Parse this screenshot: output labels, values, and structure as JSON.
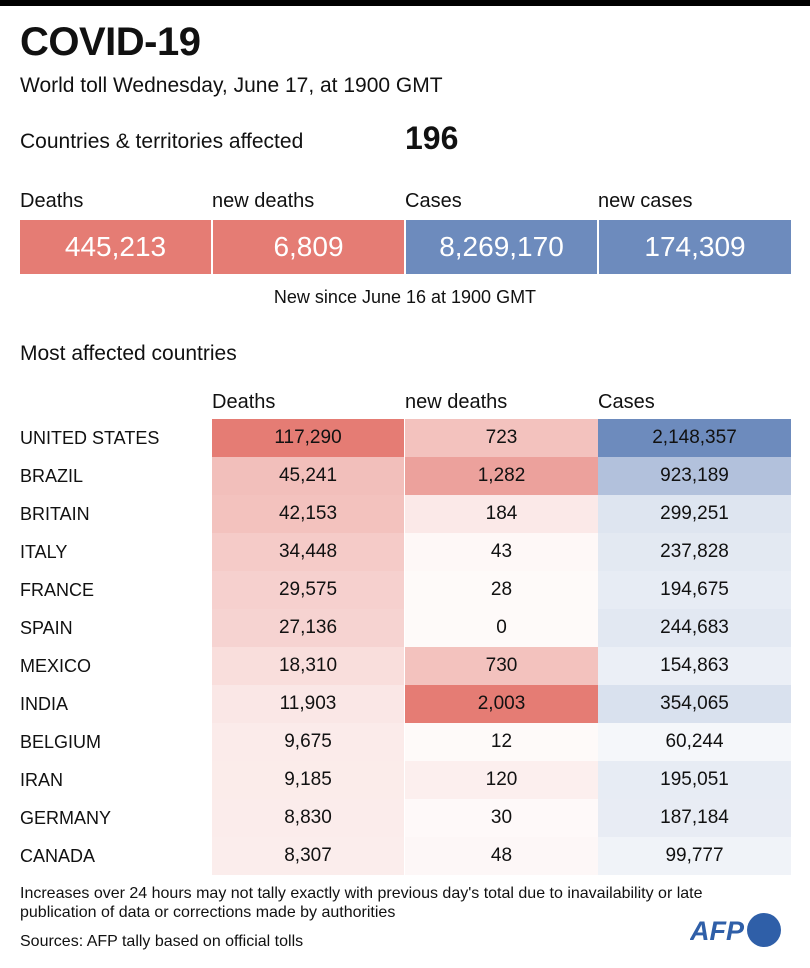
{
  "header": {
    "title": "COVID-19",
    "subtitle": "World toll Wednesday, June 17, at 1900 GMT",
    "countries_label": "Countries & territories affected",
    "countries_value": "196"
  },
  "summary": {
    "items": [
      {
        "label": "Deaths",
        "value": "445,213",
        "color": "#e57c74"
      },
      {
        "label": "new deaths",
        "value": "6,809",
        "color": "#e57c74"
      },
      {
        "label": "Cases",
        "value": "8,269,170",
        "color": "#6d8bbd"
      },
      {
        "label": "new cases",
        "value": "174,309",
        "color": "#6d8bbd"
      }
    ],
    "note": "New since  June 16 at 1900 GMT"
  },
  "table": {
    "title": "Most affected countries",
    "columns": [
      "Deaths",
      "new deaths",
      "Cases"
    ],
    "rows": [
      {
        "country": "UNITED STATES",
        "deaths": "117,290",
        "new_deaths": "723",
        "cases": "2,148,357"
      },
      {
        "country": "BRAZIL",
        "deaths": "45,241",
        "new_deaths": "1,282",
        "cases": "923,189"
      },
      {
        "country": "BRITAIN",
        "deaths": "42,153",
        "new_deaths": "184",
        "cases": "299,251"
      },
      {
        "country": "ITALY",
        "deaths": "34,448",
        "new_deaths": "43",
        "cases": "237,828"
      },
      {
        "country": "FRANCE",
        "deaths": "29,575",
        "new_deaths": "28",
        "cases": "194,675"
      },
      {
        "country": "SPAIN",
        "deaths": "27,136",
        "new_deaths": "0",
        "cases": "244,683"
      },
      {
        "country": "MEXICO",
        "deaths": "18,310",
        "new_deaths": "730",
        "cases": "154,863"
      },
      {
        "country": "INDIA",
        "deaths": "11,903",
        "new_deaths": "2,003",
        "cases": "354,065"
      },
      {
        "country": "BELGIUM",
        "deaths": "9,675",
        "new_deaths": "12",
        "cases": "60,244"
      },
      {
        "country": "IRAN",
        "deaths": "9,185",
        "new_deaths": "120",
        "cases": "195,051"
      },
      {
        "country": "GERMANY",
        "deaths": "8,830",
        "new_deaths": "30",
        "cases": "187,184"
      },
      {
        "country": "CANADA",
        "deaths": "8,307",
        "new_deaths": "48",
        "cases": "99,777"
      }
    ],
    "colors": {
      "deaths_base": "#e57c74",
      "cases_base": "#6d8bbd"
    }
  },
  "footer": {
    "note": "Increases over 24 hours may not tally exactly with previous day's total due to inavailability or late publication of data or corrections made by authorities",
    "sources": "Sources: AFP tally based on official tolls",
    "logo_text": "AFP"
  }
}
